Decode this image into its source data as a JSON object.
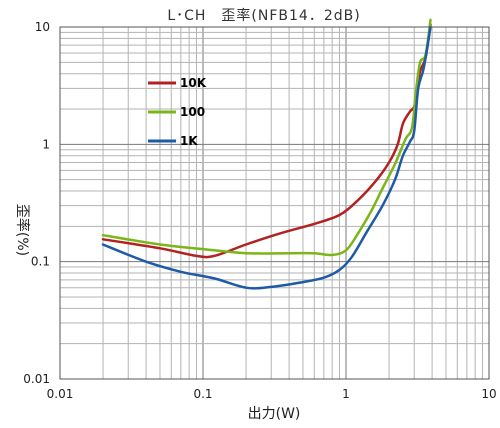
{
  "chart_data": {
    "type": "line",
    "title": "L･CH　歪率(NFB14．2dB)",
    "xlabel": "出力(W)",
    "ylabel": "歪率(%)",
    "x_scale": "log",
    "y_scale": "log",
    "xlim": [
      0.01,
      10
    ],
    "ylim": [
      0.01,
      10
    ],
    "x_ticks": [
      {
        "value": 0.01,
        "label": "0.01"
      },
      {
        "value": 0.1,
        "label": "0.1"
      },
      {
        "value": 1,
        "label": "1"
      },
      {
        "value": 10,
        "label": "10"
      }
    ],
    "y_ticks": [
      {
        "value": 0.01,
        "label": "0.01"
      },
      {
        "value": 0.1,
        "label": "0.1"
      },
      {
        "value": 1,
        "label": "1"
      },
      {
        "value": 10,
        "label": "10"
      }
    ],
    "grid": true,
    "legend_position": "top-left",
    "series": [
      {
        "name": "10K",
        "color": "#b22222",
        "x": [
          0.02,
          0.05,
          0.09,
          0.12,
          0.2,
          0.35,
          0.6,
          0.9,
          1.2,
          1.6,
          2.0,
          2.3,
          2.5,
          2.8,
          3.0,
          3.1,
          3.3,
          3.6,
          3.9
        ],
        "y": [
          0.155,
          0.13,
          0.112,
          0.112,
          0.14,
          0.175,
          0.21,
          0.25,
          0.33,
          0.48,
          0.7,
          1.0,
          1.5,
          1.9,
          2.1,
          2.8,
          4.2,
          5.5,
          10.5
        ]
      },
      {
        "name": "100",
        "color": "#7cb518",
        "x": [
          0.02,
          0.05,
          0.1,
          0.2,
          0.4,
          0.6,
          0.8,
          1.0,
          1.2,
          1.5,
          1.8,
          2.2,
          2.6,
          2.9,
          3.1,
          3.3,
          3.6,
          3.9
        ],
        "y": [
          0.168,
          0.14,
          0.128,
          0.118,
          0.118,
          0.118,
          0.114,
          0.125,
          0.17,
          0.27,
          0.42,
          0.68,
          1.1,
          1.4,
          3.0,
          5.0,
          5.8,
          11.5
        ]
      },
      {
        "name": "1K",
        "color": "#1f5aa6",
        "x": [
          0.02,
          0.04,
          0.07,
          0.12,
          0.2,
          0.3,
          0.5,
          0.7,
          0.9,
          1.1,
          1.4,
          1.8,
          2.2,
          2.5,
          2.8,
          3.0,
          3.2,
          3.5,
          3.9
        ],
        "y": [
          0.14,
          0.1,
          0.082,
          0.072,
          0.06,
          0.061,
          0.067,
          0.073,
          0.085,
          0.11,
          0.18,
          0.3,
          0.5,
          0.8,
          1.05,
          1.3,
          3.0,
          4.5,
          10.0
        ]
      }
    ]
  }
}
